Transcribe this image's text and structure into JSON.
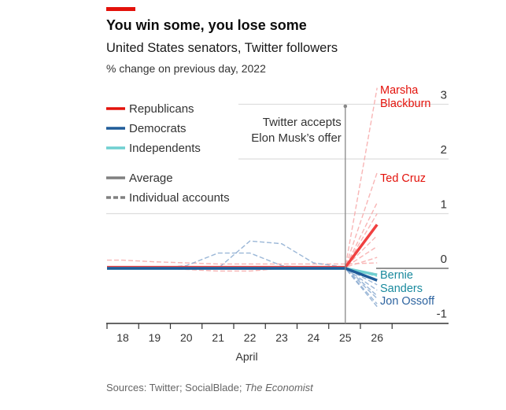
{
  "chart_data": {
    "type": "line",
    "title": "You win some, you lose some",
    "subtitle": "United States senators, Twitter followers",
    "unit_label": "% change on previous day, 2022",
    "xlabel": "April",
    "x": [
      18,
      19,
      20,
      21,
      22,
      23,
      24,
      25,
      26
    ],
    "x_tick_labels": [
      "18",
      "19",
      "20",
      "21",
      "22",
      "23",
      "24",
      "25",
      "26"
    ],
    "ylim": [
      -1,
      3
    ],
    "y_ticks": [
      "3",
      "2",
      "1",
      "0",
      "-1"
    ],
    "grid": true,
    "legend_placement": "top-left",
    "legend": [
      {
        "label": "Republicans",
        "color": "#e3120b",
        "style": "solid"
      },
      {
        "label": "Democrats",
        "color": "#1f5c99",
        "style": "solid"
      },
      {
        "label": "Independents",
        "color": "#6fcfd0",
        "style": "solid"
      },
      {
        "label": "Average",
        "color": "#808080",
        "style": "solid"
      },
      {
        "label": "Individual accounts",
        "color": "#808080",
        "style": "dashed"
      }
    ],
    "annotation": [
      "Twitter accepts",
      "Elon Musk’s offer"
    ],
    "annotation_x": 25,
    "averages": [
      {
        "party": "Republicans",
        "color": "#f04040",
        "values": [
          0.02,
          0.02,
          0.02,
          0.02,
          0.02,
          0.02,
          0.02,
          0.02,
          0.8
        ]
      },
      {
        "party": "Independents",
        "color": "#6fcfd0",
        "values": [
          0,
          0,
          0,
          0,
          0,
          0,
          0,
          0,
          -0.12
        ]
      },
      {
        "party": "Democrats",
        "color": "#1f5c99",
        "values": [
          0,
          0,
          0,
          0,
          0,
          0,
          0,
          0,
          -0.22
        ]
      }
    ],
    "individuals": [
      {
        "party": "Republicans",
        "color": "#f7a8a8",
        "values": [
          0.02,
          0.02,
          0.02,
          0.02,
          0.02,
          0.02,
          0.02,
          0.02,
          3.3
        ]
      },
      {
        "party": "Republicans",
        "color": "#f7a8a8",
        "values": [
          0.02,
          0.02,
          0.02,
          0.02,
          0.02,
          0.02,
          0.02,
          0.02,
          1.75
        ]
      },
      {
        "party": "Republicans",
        "color": "#f7a8a8",
        "values": [
          0.02,
          0.02,
          0.02,
          0.02,
          0.02,
          0.02,
          0.02,
          0.02,
          1.2
        ]
      },
      {
        "party": "Republicans",
        "color": "#f7a8a8",
        "values": [
          0.02,
          0.02,
          0.02,
          0.02,
          0.02,
          0.02,
          0.02,
          0.02,
          1.0
        ]
      },
      {
        "party": "Republicans",
        "color": "#f7a8a8",
        "values": [
          0.02,
          0.02,
          0.02,
          0.02,
          0.02,
          0.02,
          0.02,
          0.02,
          0.8
        ]
      },
      {
        "party": "Republicans",
        "color": "#f7a8a8",
        "values": [
          0.02,
          0.02,
          0.02,
          0.02,
          0.02,
          0.02,
          0.02,
          0.02,
          0.6
        ]
      },
      {
        "party": "Republicans",
        "color": "#f7a8a8",
        "values": [
          0.02,
          0.02,
          0.02,
          0.02,
          0.02,
          0.02,
          0.02,
          0.02,
          0.4
        ]
      },
      {
        "party": "Republicans",
        "color": "#f7a8a8",
        "values": [
          0.02,
          0.02,
          0.02,
          0.02,
          0.02,
          0.02,
          0.02,
          0.02,
          0.2
        ]
      },
      {
        "party": "Republicans",
        "color": "#f7a8a8",
        "values": [
          0.15,
          0.12,
          0.1,
          0.08,
          0.08,
          0.08,
          0.08,
          0.08,
          0.1
        ]
      },
      {
        "party": "Republicans",
        "color": "#f7a8a8",
        "values": [
          0.02,
          0,
          -0.02,
          -0.05,
          -0.05,
          0,
          0,
          0,
          -0.1
        ]
      },
      {
        "party": "Democrats",
        "color": "#8aaad0",
        "values": [
          0,
          0,
          0.05,
          0.28,
          0.28,
          0.05,
          0,
          0,
          -0.3
        ]
      },
      {
        "party": "Democrats",
        "color": "#8aaad0",
        "values": [
          0,
          0,
          0,
          0,
          0.5,
          0.45,
          0.1,
          0.02,
          -0.5
        ]
      },
      {
        "party": "Democrats",
        "color": "#8aaad0",
        "values": [
          0,
          0,
          0,
          0,
          0,
          0,
          0,
          0,
          -0.4
        ]
      },
      {
        "party": "Democrats",
        "color": "#8aaad0",
        "values": [
          0,
          0,
          0,
          0,
          0,
          0,
          0,
          0,
          -0.55
        ]
      },
      {
        "party": "Democrats",
        "color": "#8aaad0",
        "values": [
          0,
          0,
          0,
          0,
          0,
          0,
          0,
          0,
          -0.65
        ]
      },
      {
        "party": "Democrats",
        "color": "#8aaad0",
        "values": [
          0,
          0,
          0,
          0,
          0,
          0,
          0,
          0,
          -0.7
        ]
      },
      {
        "party": "Independents",
        "color": "#9fdfe0",
        "values": [
          0,
          0,
          0,
          0,
          0,
          0,
          0,
          0,
          -0.15
        ]
      }
    ],
    "labels": [
      {
        "lines": [
          "Marsha",
          "Blackburn"
        ],
        "color": "#e3120b"
      },
      {
        "lines": [
          "Ted Cruz"
        ],
        "color": "#e3120b"
      },
      {
        "lines": [
          "Bernie",
          "Sanders"
        ],
        "color": "#1a8a9e"
      },
      {
        "lines": [
          "Jon Ossoff"
        ],
        "color": "#2e64a0"
      }
    ]
  },
  "source": {
    "prefix": "Sources: Twitter; SocialBlade; ",
    "italic": "The Economist"
  }
}
